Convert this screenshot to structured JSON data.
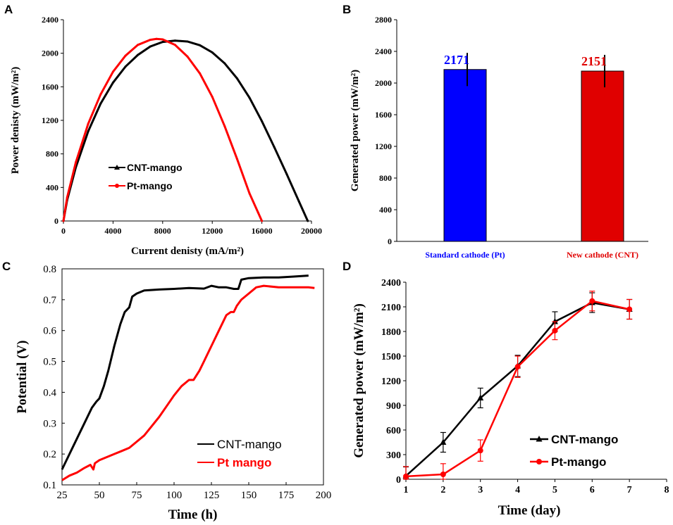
{
  "chart_data": [
    {
      "panel": "A",
      "type": "line",
      "xlabel": "Current  denisty (mA/m²)",
      "ylabel": "Power denisty (mW/m²)",
      "xlim": [
        0,
        20000
      ],
      "ylim": [
        0,
        2400
      ],
      "xticks": [
        "0",
        "4000",
        "8000",
        "12000",
        "16000",
        "20000"
      ],
      "yticks": [
        "0",
        "400",
        "800",
        "1200",
        "1600",
        "2000",
        "2400"
      ],
      "series": [
        {
          "name": "CNT-mango",
          "color": "#000000",
          "x": [
            0,
            300,
            1000,
            2000,
            3000,
            4000,
            5000,
            6000,
            7000,
            8000,
            9000,
            10000,
            11000,
            12000,
            13000,
            14000,
            15000,
            16000,
            17000,
            18000,
            19000,
            19700
          ],
          "y": [
            0,
            250,
            640,
            1070,
            1400,
            1650,
            1840,
            1980,
            2080,
            2135,
            2150,
            2140,
            2095,
            2010,
            1880,
            1700,
            1470,
            1190,
            880,
            560,
            230,
            0
          ]
        },
        {
          "name": "Pt-mango",
          "color": "#ff0000",
          "x": [
            0,
            300,
            1000,
            2000,
            3000,
            4000,
            5000,
            6000,
            7000,
            7500,
            8000,
            9000,
            10000,
            11000,
            12000,
            13000,
            14000,
            15000,
            15700,
            16000
          ],
          "y": [
            0,
            280,
            700,
            1160,
            1510,
            1780,
            1970,
            2100,
            2160,
            2171,
            2165,
            2100,
            1960,
            1760,
            1480,
            1130,
            740,
            330,
            100,
            0
          ]
        }
      ],
      "legend": [
        "CNT-mango",
        "Pt-mango"
      ]
    },
    {
      "panel": "B",
      "type": "bar",
      "ylabel": "Generated power  (mW/m²)",
      "ylim": [
        0,
        2800
      ],
      "yticks": [
        "0",
        "400",
        "800",
        "1200",
        "1600",
        "2000",
        "2400",
        "2800"
      ],
      "categories": [
        "Standard cathode (Pt)",
        "New cathode (CNT)"
      ],
      "values": [
        2171,
        2151
      ],
      "errors": [
        210,
        205
      ],
      "labels": [
        "2171",
        "2151"
      ],
      "colors": [
        "#0000ff",
        "#e00000"
      ]
    },
    {
      "panel": "C",
      "type": "line",
      "xlabel": "Time (h)",
      "ylabel": "Potential (V)",
      "xlim": [
        25,
        200
      ],
      "ylim": [
        0.1,
        0.8
      ],
      "xticks": [
        "25",
        "50",
        "75",
        "100",
        "125",
        "150",
        "175",
        "200"
      ],
      "yticks": [
        "0.1",
        "0.2",
        "0.3",
        "0.4",
        "0.5",
        "0.6",
        "0.7",
        "0.8"
      ],
      "series": [
        {
          "name": "CNT-mango",
          "color": "#000000",
          "x": [
            25,
            30,
            35,
            40,
            45,
            48,
            50,
            53,
            56,
            60,
            64,
            67,
            70,
            72,
            75,
            80,
            90,
            100,
            110,
            120,
            125,
            130,
            135,
            140,
            143,
            145,
            150,
            160,
            170,
            180,
            190
          ],
          "y": [
            0.15,
            0.2,
            0.25,
            0.3,
            0.35,
            0.37,
            0.38,
            0.42,
            0.47,
            0.55,
            0.62,
            0.66,
            0.675,
            0.71,
            0.72,
            0.73,
            0.733,
            0.735,
            0.738,
            0.736,
            0.745,
            0.74,
            0.74,
            0.735,
            0.735,
            0.765,
            0.77,
            0.772,
            0.772,
            0.775,
            0.778
          ]
        },
        {
          "name": "Pt mango",
          "color": "#ff0000",
          "x": [
            25,
            30,
            35,
            40,
            44,
            46,
            47,
            50,
            55,
            60,
            65,
            70,
            75,
            80,
            85,
            90,
            95,
            100,
            105,
            110,
            113,
            117,
            120,
            125,
            130,
            135,
            138,
            140,
            142,
            145,
            150,
            155,
            160,
            170,
            180,
            190,
            194
          ],
          "y": [
            0.115,
            0.13,
            0.14,
            0.155,
            0.165,
            0.15,
            0.17,
            0.18,
            0.19,
            0.2,
            0.21,
            0.22,
            0.24,
            0.26,
            0.29,
            0.32,
            0.355,
            0.39,
            0.42,
            0.44,
            0.44,
            0.47,
            0.5,
            0.55,
            0.6,
            0.65,
            0.66,
            0.66,
            0.68,
            0.7,
            0.72,
            0.74,
            0.745,
            0.74,
            0.74,
            0.74,
            0.738
          ]
        }
      ],
      "legend": [
        "CNT-mango",
        "Pt mango"
      ]
    },
    {
      "panel": "D",
      "type": "line",
      "xlabel": "Time (day)",
      "ylabel": "Generated power  (mW/m²)",
      "xlim": [
        1,
        8
      ],
      "ylim": [
        0,
        2400
      ],
      "xticks": [
        "1",
        "2",
        "3",
        "4",
        "5",
        "6",
        "7",
        "8"
      ],
      "yticks": [
        "0",
        "300",
        "600",
        "900",
        "1200",
        "1500",
        "1800",
        "2100",
        "2400"
      ],
      "series": [
        {
          "name": "CNT-mango",
          "color": "#000000",
          "x": [
            1,
            2,
            3,
            4,
            5,
            6,
            7
          ],
          "y": [
            40,
            450,
            990,
            1380,
            1920,
            2151,
            2070
          ],
          "err": [
            110,
            120,
            120,
            130,
            120,
            120,
            120
          ]
        },
        {
          "name": "Pt-mango",
          "color": "#ff0000",
          "x": [
            1,
            2,
            3,
            4,
            5,
            6,
            7
          ],
          "y": [
            35,
            60,
            350,
            1370,
            1810,
            2171,
            2070
          ],
          "err": [
            120,
            130,
            130,
            130,
            110,
            120,
            120
          ]
        }
      ],
      "legend": [
        "CNT-mango",
        "Pt-mango"
      ]
    }
  ]
}
